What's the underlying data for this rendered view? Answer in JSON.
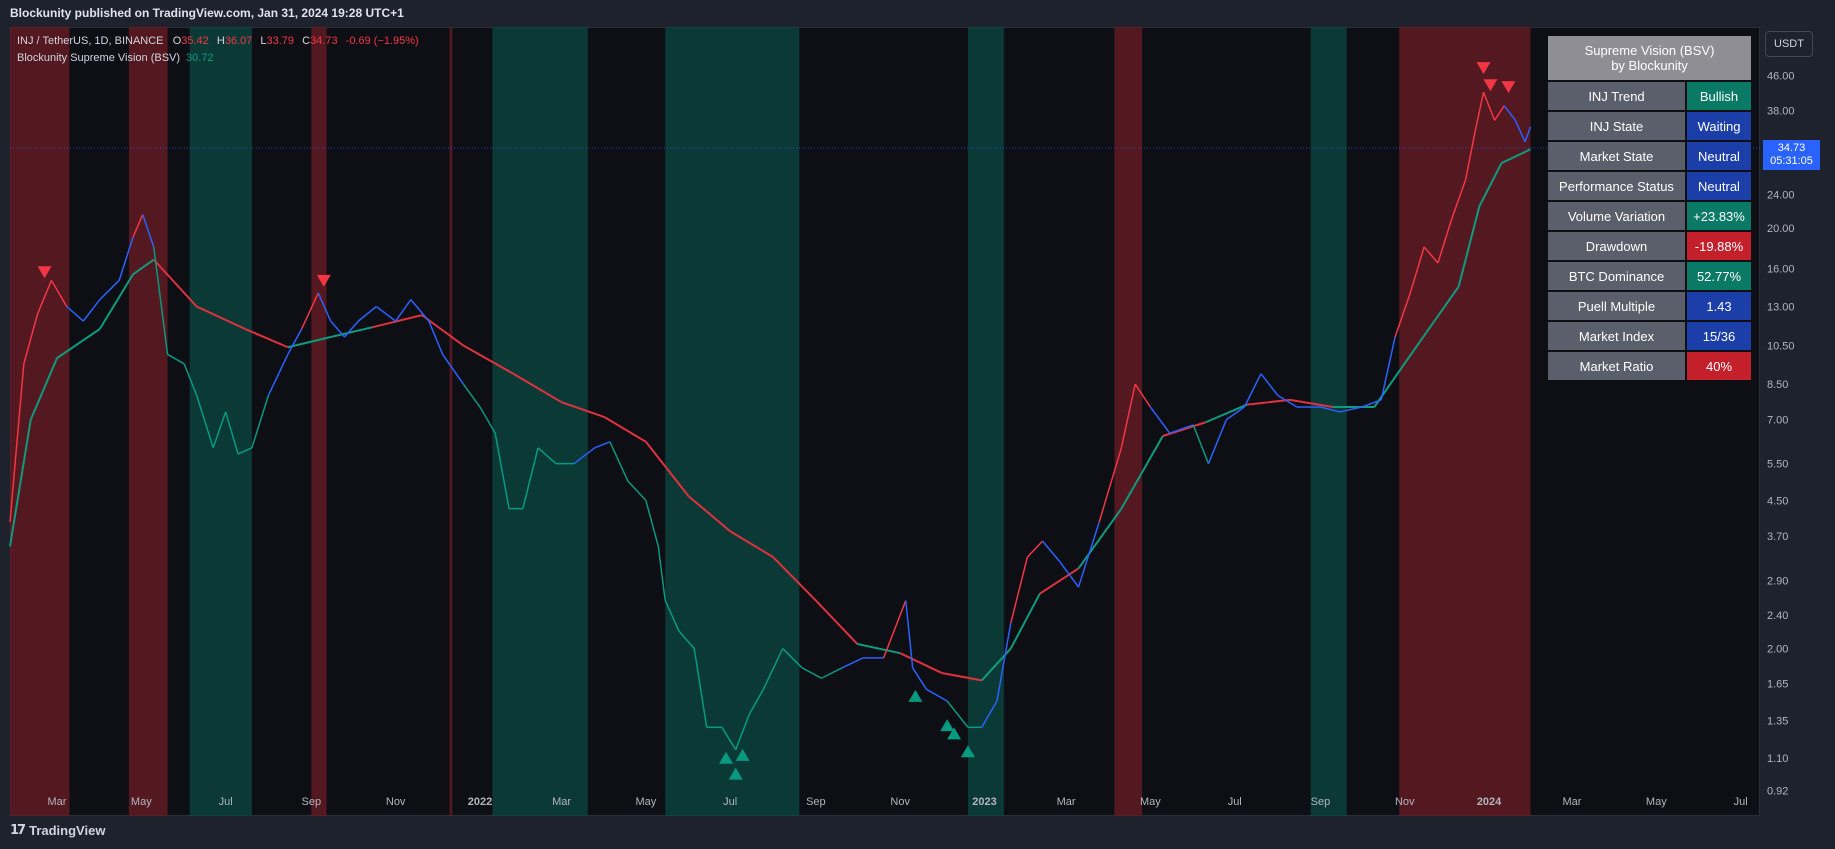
{
  "header": {
    "publish_text": "Blockunity published on TradingView.com, Jan 31, 2024 19:28 UTC+1"
  },
  "footer": {
    "logo_text": "TradingView",
    "logo_mark": "17"
  },
  "legend": {
    "symbol": "INJ / TetherUS, 1D, BINANCE",
    "ohlc": [
      {
        "label": "O",
        "value": "35.42"
      },
      {
        "label": "H",
        "value": "36.07"
      },
      {
        "label": "L",
        "value": "33.79"
      },
      {
        "label": "C",
        "value": "34.73"
      }
    ],
    "change": "-0.69 (−1.95%)",
    "indicator_name": "Blockunity Supreme Vision (BSV)",
    "indicator_value": "30.72"
  },
  "price_axis": {
    "currency": "USDT",
    "last_price": "34.73",
    "countdown": "05:31:05"
  },
  "dashboard": {
    "title_line1": "Supreme Vision (BSV)",
    "title_line2": "by Blockunity",
    "rows": [
      {
        "label": "INJ Trend",
        "value": "Bullish",
        "color": "green"
      },
      {
        "label": "INJ State",
        "value": "Waiting",
        "color": "blue"
      },
      {
        "label": "Market State",
        "value": "Neutral",
        "color": "blue"
      },
      {
        "label": "Performance Status",
        "value": "Neutral",
        "color": "blue"
      },
      {
        "label": "Volume Variation",
        "value": "+23.83%",
        "color": "green"
      },
      {
        "label": "Drawdown",
        "value": "-19.88%",
        "color": "red"
      },
      {
        "label": "BTC Dominance",
        "value": "52.77%",
        "color": "green"
      },
      {
        "label": "Puell Multiple",
        "value": "1.43",
        "color": "blue"
      },
      {
        "label": "Market Index",
        "value": "15/36",
        "color": "blue"
      },
      {
        "label": "Market Ratio",
        "value": "40%",
        "color": "red"
      }
    ]
  },
  "colors": {
    "bearish": "#f23645",
    "bullish": "#089981",
    "neutral": "#2962ff",
    "zone_red": "#6b1c24",
    "zone_green": "#0b4a42",
    "ma_red": "#e0313f",
    "ma_green": "#0f9b7e"
  },
  "chart_data": {
    "type": "line",
    "y_scale": "log",
    "ylim": [
      0.8,
      60
    ],
    "y_ticks": [
      "56.00",
      "46.00",
      "38.00",
      "30.00",
      "24.00",
      "20.00",
      "16.00",
      "13.00",
      "10.50",
      "8.50",
      "7.00",
      "5.50",
      "4.50",
      "3.70",
      "2.90",
      "2.40",
      "2.00",
      "1.65",
      "1.35",
      "1.10",
      "0.92"
    ],
    "x_ticks": [
      "Mar",
      "May",
      "Jul",
      "Sep",
      "Nov",
      "2022",
      "Mar",
      "May",
      "Jul",
      "Sep",
      "Nov",
      "2023",
      "Mar",
      "May",
      "Jul",
      "Sep",
      "Nov",
      "2024",
      "Mar",
      "May",
      "Jul"
    ],
    "x_range": [
      "2021-01-26",
      "2024-07-15"
    ],
    "series": [
      {
        "name": "INJ / TetherUS",
        "points": [
          [
            "2021-01-26",
            4.0
          ],
          [
            "2021-02-05",
            9.5
          ],
          [
            "2021-02-15",
            12.5
          ],
          [
            "2021-02-25",
            15.0
          ],
          [
            "2021-03-08",
            13.0
          ],
          [
            "2021-03-20",
            12.0
          ],
          [
            "2021-04-01",
            13.5
          ],
          [
            "2021-04-15",
            15.0
          ],
          [
            "2021-04-25",
            19.0
          ],
          [
            "2021-05-02",
            21.5
          ],
          [
            "2021-05-10",
            18.0
          ],
          [
            "2021-05-20",
            10.0
          ],
          [
            "2021-06-01",
            9.5
          ],
          [
            "2021-06-10",
            8.0
          ],
          [
            "2021-06-22",
            6.0
          ],
          [
            "2021-07-01",
            7.3
          ],
          [
            "2021-07-10",
            5.8
          ],
          [
            "2021-07-20",
            6.0
          ],
          [
            "2021-08-01",
            8.0
          ],
          [
            "2021-08-15",
            10.0
          ],
          [
            "2021-08-25",
            11.5
          ],
          [
            "2021-09-06",
            14.0
          ],
          [
            "2021-09-15",
            12.0
          ],
          [
            "2021-09-25",
            11.0
          ],
          [
            "2021-10-05",
            12.0
          ],
          [
            "2021-10-18",
            13.0
          ],
          [
            "2021-11-01",
            12.0
          ],
          [
            "2021-11-12",
            13.5
          ],
          [
            "2021-11-25",
            12.0
          ],
          [
            "2021-12-05",
            10.0
          ],
          [
            "2021-12-20",
            8.5
          ],
          [
            "2022-01-01",
            7.5
          ],
          [
            "2022-01-12",
            6.5
          ],
          [
            "2022-01-22",
            4.3
          ],
          [
            "2022-02-01",
            4.3
          ],
          [
            "2022-02-12",
            6.0
          ],
          [
            "2022-02-25",
            5.5
          ],
          [
            "2022-03-10",
            5.5
          ],
          [
            "2022-03-25",
            6.0
          ],
          [
            "2022-04-05",
            6.2
          ],
          [
            "2022-04-18",
            5.0
          ],
          [
            "2022-05-01",
            4.5
          ],
          [
            "2022-05-10",
            3.5
          ],
          [
            "2022-05-15",
            2.6
          ],
          [
            "2022-05-25",
            2.2
          ],
          [
            "2022-06-05",
            2.0
          ],
          [
            "2022-06-14",
            1.3
          ],
          [
            "2022-06-25",
            1.3
          ],
          [
            "2022-07-05",
            1.15
          ],
          [
            "2022-07-15",
            1.4
          ],
          [
            "2022-07-25",
            1.6
          ],
          [
            "2022-08-08",
            2.0
          ],
          [
            "2022-08-22",
            1.8
          ],
          [
            "2022-09-05",
            1.7
          ],
          [
            "2022-09-20",
            1.8
          ],
          [
            "2022-10-05",
            1.9
          ],
          [
            "2022-10-20",
            1.9
          ],
          [
            "2022-11-05",
            2.6
          ],
          [
            "2022-11-10",
            1.8
          ],
          [
            "2022-11-20",
            1.6
          ],
          [
            "2022-12-05",
            1.5
          ],
          [
            "2022-12-20",
            1.3
          ],
          [
            "2022-12-30",
            1.3
          ],
          [
            "2023-01-10",
            1.5
          ],
          [
            "2023-01-20",
            2.3
          ],
          [
            "2023-02-01",
            3.3
          ],
          [
            "2023-02-12",
            3.6
          ],
          [
            "2023-02-25",
            3.2
          ],
          [
            "2023-03-10",
            2.8
          ],
          [
            "2023-03-25",
            4.0
          ],
          [
            "2023-04-10",
            6.0
          ],
          [
            "2023-04-20",
            8.5
          ],
          [
            "2023-05-01",
            7.5
          ],
          [
            "2023-05-15",
            6.5
          ],
          [
            "2023-06-01",
            6.8
          ],
          [
            "2023-06-12",
            5.5
          ],
          [
            "2023-06-25",
            7.0
          ],
          [
            "2023-07-08",
            7.5
          ],
          [
            "2023-07-20",
            9.0
          ],
          [
            "2023-08-01",
            8.0
          ],
          [
            "2023-08-15",
            7.5
          ],
          [
            "2023-09-01",
            7.5
          ],
          [
            "2023-09-15",
            7.3
          ],
          [
            "2023-10-01",
            7.5
          ],
          [
            "2023-10-15",
            7.8
          ],
          [
            "2023-10-25",
            11.0
          ],
          [
            "2023-11-05",
            14.0
          ],
          [
            "2023-11-15",
            18.0
          ],
          [
            "2023-11-25",
            16.5
          ],
          [
            "2023-12-05",
            21.0
          ],
          [
            "2023-12-15",
            26.0
          ],
          [
            "2023-12-22",
            34.0
          ],
          [
            "2023-12-28",
            42.0
          ],
          [
            "2024-01-05",
            36.0
          ],
          [
            "2024-01-12",
            39.0
          ],
          [
            "2024-01-20",
            36.0
          ],
          [
            "2024-01-27",
            32.0
          ],
          [
            "2024-01-31",
            34.73
          ]
        ]
      },
      {
        "name": "BSV baseline",
        "points": [
          [
            "2021-01-26",
            3.5
          ],
          [
            "2021-02-10",
            7.0
          ],
          [
            "2021-03-01",
            9.8
          ],
          [
            "2021-04-01",
            11.5
          ],
          [
            "2021-04-25",
            15.5
          ],
          [
            "2021-05-10",
            16.8
          ],
          [
            "2021-06-10",
            13.0
          ],
          [
            "2021-07-15",
            11.5
          ],
          [
            "2021-08-15",
            10.4
          ],
          [
            "2021-09-15",
            11.0
          ],
          [
            "2021-10-15",
            11.6
          ],
          [
            "2021-11-20",
            12.4
          ],
          [
            "2021-12-20",
            10.5
          ],
          [
            "2022-01-25",
            9.0
          ],
          [
            "2022-03-01",
            7.7
          ],
          [
            "2022-04-01",
            7.1
          ],
          [
            "2022-05-01",
            6.2
          ],
          [
            "2022-06-01",
            4.6
          ],
          [
            "2022-07-01",
            3.8
          ],
          [
            "2022-08-01",
            3.3
          ],
          [
            "2022-09-01",
            2.6
          ],
          [
            "2022-10-01",
            2.05
          ],
          [
            "2022-11-01",
            1.95
          ],
          [
            "2022-12-01",
            1.75
          ],
          [
            "2022-12-30",
            1.68
          ],
          [
            "2023-01-20",
            2.0
          ],
          [
            "2023-02-10",
            2.7
          ],
          [
            "2023-03-10",
            3.1
          ],
          [
            "2023-04-10",
            4.3
          ],
          [
            "2023-05-10",
            6.4
          ],
          [
            "2023-06-10",
            6.9
          ],
          [
            "2023-07-10",
            7.6
          ],
          [
            "2023-08-10",
            7.8
          ],
          [
            "2023-09-10",
            7.5
          ],
          [
            "2023-10-10",
            7.5
          ],
          [
            "2023-11-10",
            10.5
          ],
          [
            "2023-12-10",
            14.5
          ],
          [
            "2023-12-25",
            22.5
          ],
          [
            "2024-01-10",
            28.5
          ],
          [
            "2024-01-31",
            30.72
          ]
        ]
      }
    ],
    "buy_signals": [
      "2022-06-28",
      "2022-07-05",
      "2022-07-10",
      "2022-11-12",
      "2022-12-05",
      "2022-12-10",
      "2022-12-20"
    ],
    "sell_signals": [
      "2021-02-20",
      "2021-09-10",
      "2023-12-28",
      "2024-01-02",
      "2024-01-15"
    ],
    "zones": [
      {
        "from": "2021-01-26",
        "to": "2021-03-10",
        "type": "red"
      },
      {
        "from": "2021-04-22",
        "to": "2021-05-20",
        "type": "red"
      },
      {
        "from": "2021-06-05",
        "to": "2021-07-20",
        "type": "green"
      },
      {
        "from": "2021-09-01",
        "to": "2021-09-12",
        "type": "red"
      },
      {
        "from": "2021-12-10",
        "to": "2021-12-12",
        "type": "red"
      },
      {
        "from": "2022-01-10",
        "to": "2022-03-20",
        "type": "green"
      },
      {
        "from": "2022-05-15",
        "to": "2022-08-20",
        "type": "green"
      },
      {
        "from": "2022-12-20",
        "to": "2023-01-15",
        "type": "green"
      },
      {
        "from": "2023-04-05",
        "to": "2023-04-25",
        "type": "red"
      },
      {
        "from": "2023-08-25",
        "to": "2023-09-20",
        "type": "green"
      },
      {
        "from": "2023-10-28",
        "to": "2024-01-31",
        "type": "red"
      }
    ]
  }
}
